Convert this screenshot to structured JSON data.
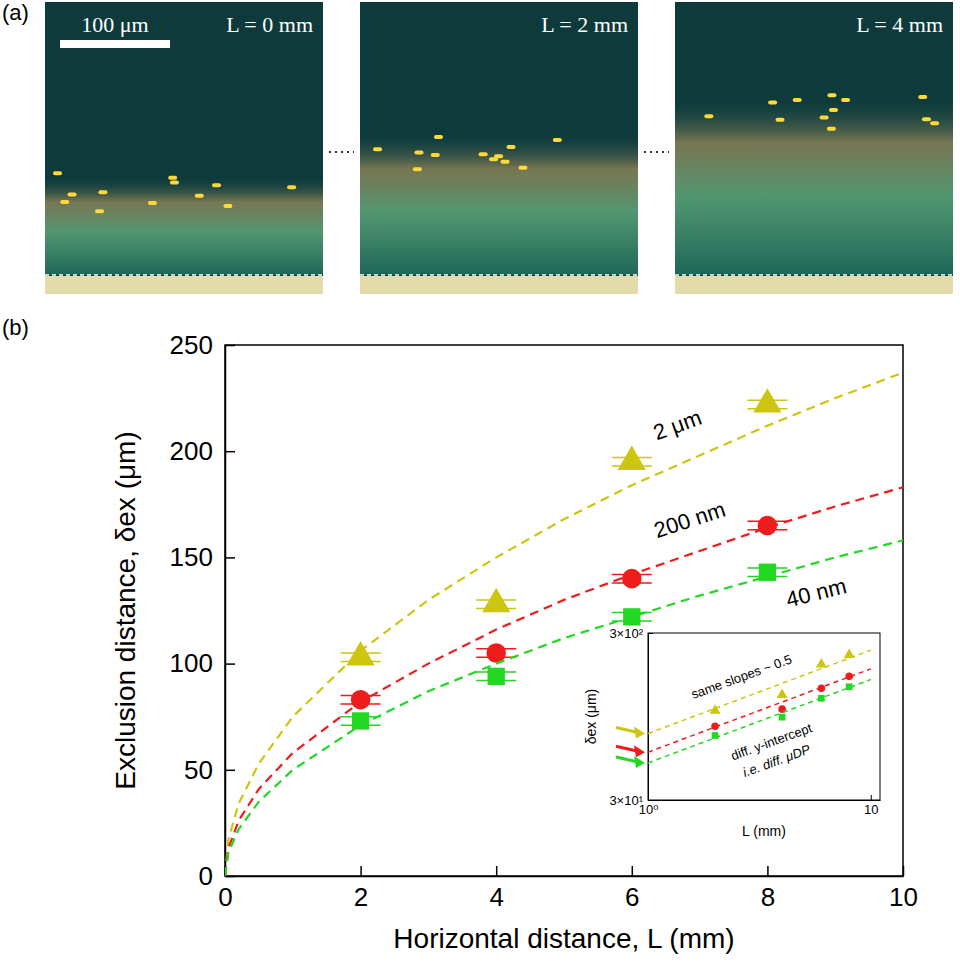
{
  "panel_a": {
    "panel": "(a)",
    "scale_bar": "100 μm",
    "images": [
      "L = 0 mm",
      "L = 2 mm",
      "L = 4 mm"
    ]
  },
  "chart_data": [
    {
      "type": "scatter",
      "panel": "(b)",
      "x_label": "Horizontal distance, L (mm)",
      "y_label": "Exclusion distance, δex (μm)",
      "x": [
        2,
        4,
        6,
        8
      ],
      "xlim": [
        0,
        10
      ],
      "ylim": [
        0,
        250
      ],
      "xticks": [
        0,
        2,
        4,
        6,
        8,
        10
      ],
      "yticks": [
        0,
        50,
        100,
        150,
        200,
        250
      ],
      "series": [
        {
          "name": "2 μm",
          "color": "#cdc510",
          "marker": "triangle",
          "line_style": "dashed",
          "values": [
            103,
            128,
            195,
            222
          ],
          "errors": [
            2,
            2,
            2,
            2
          ],
          "fit_x": [
            0,
            0.05,
            0.2,
            0.5,
            1,
            2,
            3,
            4,
            5,
            6,
            7,
            8,
            9,
            10
          ],
          "fit_values": [
            0,
            17,
            34,
            53,
            75,
            106,
            130,
            150,
            168,
            184,
            198,
            212,
            225,
            237
          ]
        },
        {
          "name": "200 nm",
          "color": "#ee1c1c",
          "marker": "circle",
          "line_style": "dashed",
          "values": [
            83,
            105,
            140,
            165
          ],
          "errors": [
            2,
            2,
            2,
            2
          ],
          "fit_x": [
            0,
            0.05,
            0.2,
            0.5,
            1,
            2,
            3,
            4,
            5,
            6,
            7,
            8,
            9,
            10
          ],
          "fit_values": [
            0,
            13,
            26,
            41,
            58,
            82,
            100,
            116,
            130,
            142,
            153,
            164,
            174,
            183
          ]
        },
        {
          "name": "40 nm",
          "color": "#22d822",
          "marker": "square",
          "line_style": "dashed",
          "values": [
            73,
            94,
            122,
            143
          ],
          "errors": [
            2,
            2,
            2,
            2
          ],
          "fit_x": [
            0,
            0.05,
            0.2,
            0.5,
            1,
            2,
            3,
            4,
            5,
            6,
            7,
            8,
            9,
            10
          ],
          "fit_values": [
            0,
            11,
            22,
            35,
            50,
            71,
            87,
            100,
            112,
            122,
            132,
            141,
            150,
            158
          ]
        }
      ]
    },
    {
      "type": "scatter",
      "log": true,
      "x_label": "L (mm)",
      "y_label": "δex (μm)",
      "x": [
        2,
        4,
        6,
        8
      ],
      "xlim": [
        1,
        11
      ],
      "ylim": [
        30,
        300
      ],
      "xticks": [
        {
          "value": 1,
          "label": "10⁰"
        },
        {
          "value": 10,
          "label": "10"
        }
      ],
      "yticks": [
        {
          "value": 30,
          "label": "3×10¹"
        },
        {
          "value": 300,
          "label": "3×10²"
        }
      ],
      "annotations": [
        "same slopes ~ 0.5",
        "diff. y-intercept",
        "i.e. diff. μDP"
      ],
      "series": [
        {
          "color": "#cdc510",
          "marker": "triangle",
          "line_style": "dashed",
          "values": [
            103,
            128,
            195,
            222
          ],
          "fit_x": [
            1,
            10
          ],
          "fit_values": [
            75,
            237
          ]
        },
        {
          "color": "#ee1c1c",
          "marker": "circle",
          "line_style": "dashed",
          "values": [
            83,
            105,
            140,
            165
          ],
          "fit_x": [
            1,
            10
          ],
          "fit_values": [
            58,
            183
          ]
        },
        {
          "color": "#22d822",
          "marker": "square",
          "line_style": "dashed",
          "values": [
            73,
            94,
            122,
            143
          ],
          "fit_x": [
            1,
            10
          ],
          "fit_values": [
            50,
            158
          ]
        }
      ]
    }
  ]
}
